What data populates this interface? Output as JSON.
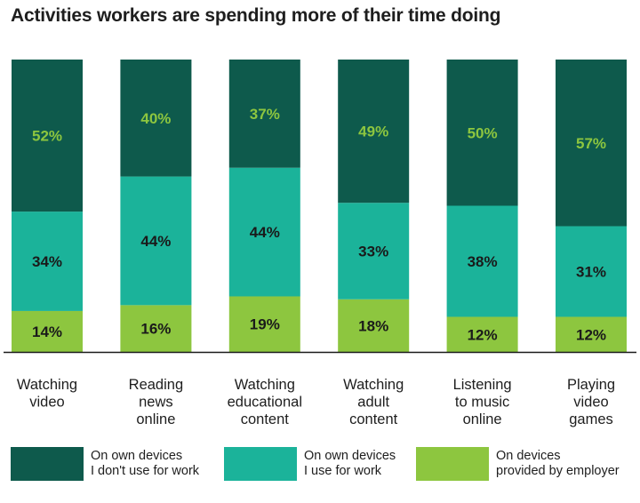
{
  "title": "Activities workers are spending more of their time doing",
  "colors": {
    "own_not_work": "#0e5a4c",
    "own_work": "#1bb39a",
    "employer": "#8dc63f",
    "label_light": "#8dc63f",
    "label_dark": "#1a1a1a",
    "baseline": "#1a1a1a"
  },
  "chart_data": {
    "type": "bar",
    "stacked": true,
    "orientation": "vertical",
    "title": "Activities workers are spending more of their time doing",
    "xlabel": "",
    "ylabel": "",
    "ylim": [
      0,
      100
    ],
    "categories": [
      [
        "Watching",
        "video"
      ],
      [
        "Reading",
        "news",
        "online"
      ],
      [
        "Watching",
        "educational",
        "content"
      ],
      [
        "Watching",
        "adult",
        "content"
      ],
      [
        "Listening",
        "to music",
        "online"
      ],
      [
        "Playing",
        "video",
        "games"
      ]
    ],
    "series": [
      {
        "name": "On devices provided by employer",
        "key": "employer",
        "values": [
          14,
          16,
          19,
          18,
          12,
          12
        ],
        "labels": [
          "14%",
          "16%",
          "19%",
          "18%",
          "12%",
          "12%"
        ]
      },
      {
        "name": "On own devices I use for work",
        "key": "own_work",
        "values": [
          34,
          44,
          44,
          33,
          38,
          31
        ],
        "labels": [
          "34%",
          "44%",
          "44%",
          "33%",
          "38%",
          "31%"
        ]
      },
      {
        "name": "On own devices I don't use for work",
        "key": "own_not_work",
        "values": [
          52,
          40,
          37,
          49,
          50,
          57
        ],
        "labels": [
          "52%",
          "40%",
          "37%",
          "49%",
          "50%",
          "57%"
        ]
      }
    ],
    "legend": [
      {
        "key": "own_not_work",
        "text": "On own devices\nI don't use for work"
      },
      {
        "key": "own_work",
        "text": "On own devices\nI use for work"
      },
      {
        "key": "employer",
        "text": "On devices\nprovided by employer"
      }
    ],
    "legend_position": "bottom",
    "grid": false
  }
}
